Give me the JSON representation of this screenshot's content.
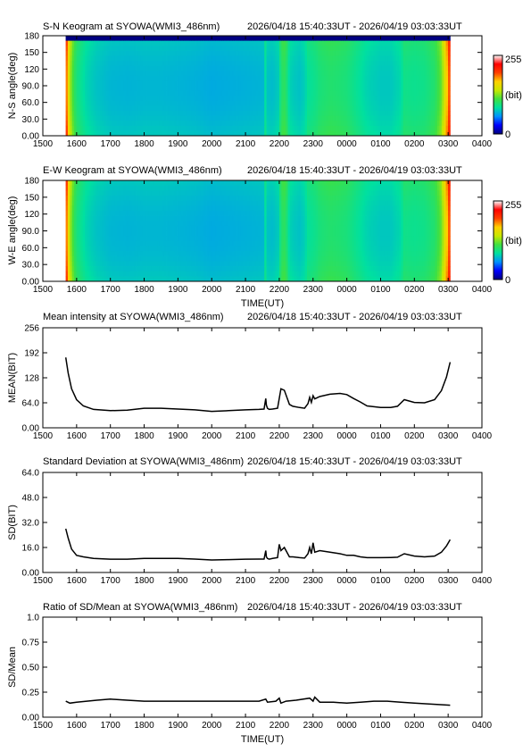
{
  "station": "SYOWA",
  "instrument": "WMI3_486nm",
  "time_range": "2026/04/18 15:40:33UT - 2026/04/19 03:03:33UT",
  "x_axis": {
    "ticks": [
      "1500",
      "1600",
      "1700",
      "1800",
      "1900",
      "2000",
      "2100",
      "2200",
      "2300",
      "0000",
      "0100",
      "0200",
      "0300",
      "0400"
    ],
    "label": "TIME(UT)"
  },
  "colorbar": {
    "max_label": "255",
    "unit_label": "(bit)",
    "min_label": "0",
    "colors": [
      "#000080",
      "#0000ff",
      "#0090ff",
      "#00e0a0",
      "#40e040",
      "#c8e800",
      "#ffd000",
      "#ff4000",
      "#ff0000",
      "#ffffff"
    ]
  },
  "chart_data": [
    {
      "type": "heatmap",
      "title": "S-N Keogram at SYOWA(WMI3_486nm)",
      "subtitle": "2026/04/18 15:40:33UT - 2026/04/19 03:03:33UT",
      "xlabel": "",
      "ylabel": "N-S angle(deg)",
      "yticks": [
        "0.00",
        "30.0",
        "60.0",
        "90.0",
        "120",
        "150",
        "180"
      ],
      "xlim": [
        15.0,
        28.0
      ],
      "ylim": [
        0,
        180
      ],
      "clim": [
        0,
        255
      ],
      "data_start": 15.6758,
      "data_end": 27.0592,
      "profile_hours": [
        15.68,
        15.75,
        15.85,
        16.0,
        16.3,
        16.6,
        17.0,
        17.5,
        18.0,
        18.5,
        19.0,
        19.5,
        20.0,
        20.5,
        21.0,
        21.4,
        21.55,
        21.6,
        21.65,
        21.8,
        22.0,
        22.05,
        22.15,
        22.25,
        22.3,
        22.45,
        22.6,
        22.75,
        22.9,
        22.95,
        23.0,
        23.05,
        23.2,
        23.5,
        23.8,
        24.0,
        24.3,
        24.6,
        25.0,
        25.3,
        25.6,
        25.7,
        26.0,
        26.3,
        26.6,
        26.8,
        26.95,
        27.06
      ],
      "profile_bits": [
        200,
        160,
        120,
        95,
        80,
        74,
        70,
        69,
        70,
        70,
        69,
        68,
        66,
        67,
        68,
        69,
        70,
        88,
        74,
        72,
        78,
        100,
        104,
        94,
        80,
        76,
        74,
        78,
        92,
        80,
        95,
        90,
        96,
        100,
        98,
        96,
        88,
        80,
        76,
        76,
        82,
        92,
        90,
        92,
        100,
        120,
        165,
        205
      ]
    },
    {
      "type": "heatmap",
      "title": "E-W Keogram at SYOWA(WMI3_486nm)",
      "subtitle": "2026/04/18 15:40:33UT - 2026/04/19 03:03:33UT",
      "xlabel": "TIME(UT)",
      "ylabel": "W-E angle(deg)",
      "yticks": [
        "0.00",
        "30.0",
        "60.0",
        "90.0",
        "120",
        "150",
        "180"
      ],
      "xlim": [
        15.0,
        28.0
      ],
      "ylim": [
        0,
        180
      ],
      "clim": [
        0,
        255
      ],
      "data_start": 15.6758,
      "data_end": 27.0592,
      "profile_hours": [
        15.68,
        15.75,
        15.85,
        16.0,
        16.3,
        16.6,
        17.0,
        17.5,
        18.0,
        18.5,
        19.0,
        19.5,
        20.0,
        20.5,
        21.0,
        21.4,
        21.55,
        21.6,
        21.65,
        21.8,
        22.0,
        22.05,
        22.15,
        22.25,
        22.3,
        22.45,
        22.6,
        22.75,
        22.9,
        22.95,
        23.0,
        23.05,
        23.2,
        23.5,
        23.8,
        24.0,
        24.3,
        24.6,
        25.0,
        25.3,
        25.6,
        25.7,
        26.0,
        26.3,
        26.6,
        26.8,
        26.95,
        27.06
      ],
      "profile_bits": [
        200,
        160,
        120,
        95,
        80,
        74,
        70,
        69,
        70,
        70,
        69,
        68,
        66,
        67,
        68,
        69,
        70,
        88,
        74,
        72,
        78,
        100,
        104,
        94,
        80,
        76,
        74,
        78,
        92,
        80,
        95,
        90,
        96,
        100,
        98,
        96,
        88,
        80,
        76,
        76,
        82,
        92,
        90,
        92,
        100,
        120,
        165,
        205
      ]
    },
    {
      "type": "line",
      "title": "Mean intensity at SYOWA(WMI3_486nm)",
      "subtitle": "2026/04/18 15:40:33UT - 2026/04/19 03:03:33UT",
      "xlabel": "",
      "ylabel": "MEAN(BIT)",
      "yticks": [
        "0.00",
        "64.0",
        "128",
        "192",
        "256"
      ],
      "xlim": [
        15.0,
        28.0
      ],
      "ylim": [
        0,
        256
      ],
      "x": [
        15.68,
        15.75,
        15.85,
        16.0,
        16.2,
        16.5,
        17.0,
        17.5,
        18.0,
        18.5,
        19.0,
        19.5,
        20.0,
        20.5,
        21.0,
        21.4,
        21.55,
        21.6,
        21.62,
        21.65,
        21.7,
        21.8,
        21.95,
        22.0,
        22.05,
        22.15,
        22.25,
        22.3,
        22.4,
        22.6,
        22.75,
        22.85,
        22.9,
        22.95,
        23.0,
        23.05,
        23.2,
        23.5,
        23.8,
        24.0,
        24.2,
        24.4,
        24.6,
        25.0,
        25.3,
        25.5,
        25.7,
        26.0,
        26.3,
        26.6,
        26.8,
        26.95,
        27.06
      ],
      "y": [
        180,
        140,
        100,
        72,
        56,
        47,
        44,
        45,
        50,
        50,
        48,
        46,
        42,
        44,
        46,
        47,
        48,
        75,
        58,
        50,
        47,
        48,
        50,
        75,
        100,
        96,
        72,
        60,
        55,
        52,
        50,
        62,
        78,
        65,
        82,
        74,
        80,
        86,
        88,
        85,
        75,
        66,
        56,
        52,
        52,
        55,
        72,
        65,
        64,
        72,
        95,
        130,
        168
      ]
    },
    {
      "type": "line",
      "title": "Standard Deviation at SYOWA(WMI3_486nm)",
      "subtitle": "2026/04/18 15:40:33UT - 2026/04/19 03:03:33UT",
      "xlabel": "",
      "ylabel": "SD(BIT)",
      "yticks": [
        "0.00",
        "16.0",
        "32.0",
        "48.0",
        "64.0"
      ],
      "xlim": [
        15.0,
        28.0
      ],
      "ylim": [
        0,
        64
      ],
      "x": [
        15.68,
        15.75,
        15.85,
        16.0,
        16.2,
        16.5,
        17.0,
        17.5,
        18.0,
        18.5,
        19.0,
        19.5,
        20.0,
        20.5,
        21.0,
        21.4,
        21.55,
        21.6,
        21.62,
        21.65,
        21.7,
        21.8,
        21.95,
        22.0,
        22.05,
        22.15,
        22.25,
        22.3,
        22.4,
        22.6,
        22.75,
        22.85,
        22.9,
        22.95,
        23.0,
        23.05,
        23.2,
        23.5,
        23.8,
        24.0,
        24.2,
        24.4,
        24.6,
        25.0,
        25.3,
        25.5,
        25.7,
        26.0,
        26.3,
        26.6,
        26.8,
        26.95,
        27.06
      ],
      "y": [
        28,
        22,
        15,
        11,
        10,
        9,
        8.5,
        8.5,
        9,
        9,
        9,
        8.6,
        8,
        8.2,
        8.5,
        8.6,
        8.6,
        14,
        10,
        9,
        8.5,
        9,
        9.5,
        18,
        14,
        16,
        12,
        10,
        10,
        9.5,
        9.2,
        12,
        16,
        12,
        19,
        13,
        14,
        13,
        12,
        11,
        11,
        10,
        9.5,
        9.5,
        9.6,
        9.8,
        12,
        10.5,
        10,
        10.5,
        13,
        17,
        21
      ]
    },
    {
      "type": "line",
      "title": "Ratio of SD/Mean at SYOWA(WMI3_486nm)",
      "subtitle": "2026/04/18 15:40:33UT - 2026/04/19 03:03:33UT",
      "xlabel": "TIME(UT)",
      "ylabel": "SD/Mean",
      "yticks": [
        "0.00",
        "0.25",
        "0.50",
        "0.75",
        "1.0"
      ],
      "xlim": [
        15.0,
        28.0
      ],
      "ylim": [
        0,
        1.0
      ],
      "x": [
        15.68,
        15.8,
        16.0,
        16.3,
        16.6,
        17.0,
        17.5,
        18.0,
        18.5,
        19.0,
        19.5,
        20.0,
        20.5,
        21.0,
        21.4,
        21.6,
        21.65,
        21.9,
        22.0,
        22.05,
        22.2,
        22.5,
        22.9,
        23.0,
        23.05,
        23.2,
        23.6,
        24.0,
        24.4,
        24.8,
        25.2,
        25.6,
        26.0,
        26.5,
        27.06
      ],
      "y": [
        0.16,
        0.14,
        0.15,
        0.16,
        0.17,
        0.18,
        0.17,
        0.16,
        0.16,
        0.16,
        0.16,
        0.16,
        0.16,
        0.16,
        0.16,
        0.18,
        0.15,
        0.16,
        0.19,
        0.14,
        0.16,
        0.17,
        0.19,
        0.16,
        0.2,
        0.15,
        0.15,
        0.14,
        0.15,
        0.16,
        0.16,
        0.15,
        0.14,
        0.13,
        0.12
      ]
    }
  ]
}
